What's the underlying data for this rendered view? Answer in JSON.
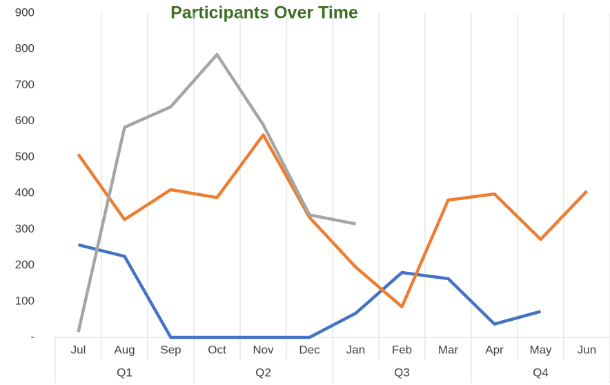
{
  "chart_data": {
    "type": "line",
    "title": "Participants Over Time",
    "categories": [
      "Jul",
      "Aug",
      "Sep",
      "Oct",
      "Nov",
      "Dec",
      "Jan",
      "Feb",
      "Mar",
      "Apr",
      "May",
      "Jun"
    ],
    "groups": [
      "Q1",
      "Q2",
      "Q3",
      "Q4"
    ],
    "series": [
      {
        "color": "#4472c4",
        "values": [
          257,
          225,
          0,
          0,
          0,
          0,
          67,
          180,
          163,
          37,
          72,
          null
        ]
      },
      {
        "color": "#ed7d31",
        "values": [
          508,
          327,
          410,
          388,
          562,
          333,
          195,
          85,
          381,
          398,
          272,
          406
        ]
      },
      {
        "color": "#a5a5a5",
        "values": [
          15,
          583,
          640,
          785,
          590,
          340,
          315,
          null,
          null,
          null,
          null,
          null
        ]
      }
    ],
    "ylim": [
      0,
      900
    ],
    "yticks": [
      {
        "value": 0,
        "label": "-"
      },
      100,
      200,
      300,
      400,
      500,
      600,
      700,
      800,
      900
    ],
    "title_color": "#3b6e22"
  }
}
